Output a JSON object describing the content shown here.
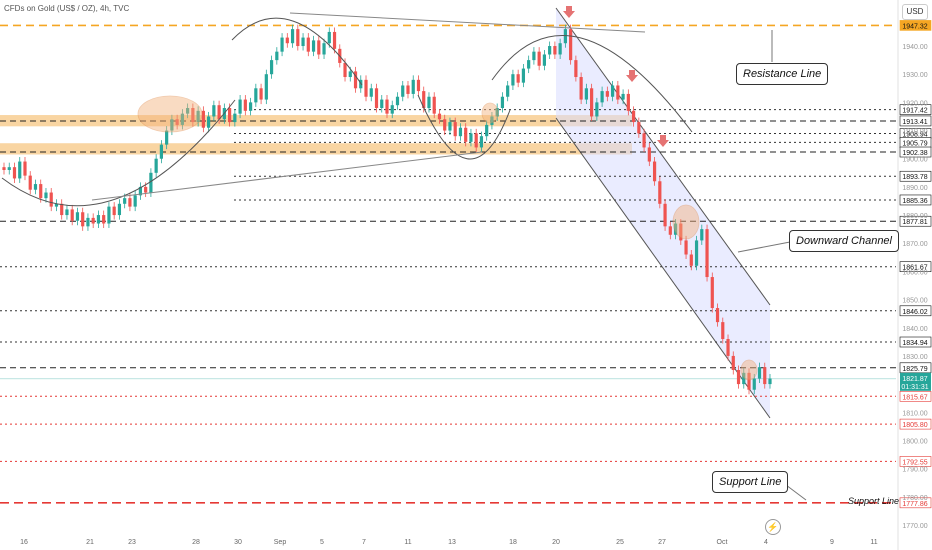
{
  "header": {
    "symbol": "CFDs on Gold (US$ / OZ), 4h, TVC",
    "currency": "USD"
  },
  "annotations": {
    "resistance": "Resistance Line",
    "downward_channel": "Downward Channel",
    "support": "Support Line",
    "support_axis": "Support Line"
  },
  "colors": {
    "up": "#26a69a",
    "down": "#ef5350",
    "orange_zone": "#f7c37a",
    "channel": "#d9dcff",
    "resistance": "#f5a623",
    "support": "#e53935"
  },
  "chart_data": {
    "type": "candlestick",
    "title": "CFDs on Gold (US$ / OZ), 4h, TVC",
    "x_ticks": [
      "16",
      "21",
      "23",
      "28",
      "30",
      "Sep",
      "5",
      "7",
      "11",
      "13",
      "18",
      "20",
      "25",
      "27",
      "Oct",
      "4",
      "9",
      "11"
    ],
    "y_ticks": [
      1770.0,
      1780.0,
      1790.0,
      1800.0,
      1810.0,
      1820.0,
      1830.0,
      1840.0,
      1850.0,
      1860.0,
      1870.0,
      1880.0,
      1890.0,
      1900.0,
      1910.0,
      1920.0,
      1930.0,
      1940.0
    ],
    "ylim": [
      1767.5,
      1953.5
    ],
    "price_levels": [
      {
        "value": 1947.32,
        "label": "1947.32",
        "style": "resistance"
      },
      {
        "value": 1917.42,
        "label": "1917.42",
        "style": "dotted"
      },
      {
        "value": 1913.41,
        "label": "1913.41",
        "style": "dashed"
      },
      {
        "value": 1908.94,
        "label": "1908.94",
        "style": "dotted"
      },
      {
        "value": 1905.79,
        "label": "1905.79",
        "style": "dotted"
      },
      {
        "value": 1902.38,
        "label": "1902.38",
        "style": "dashed"
      },
      {
        "value": 1893.78,
        "label": "1893.78",
        "style": "dotted"
      },
      {
        "value": 1885.36,
        "label": "1885.36",
        "style": "dotted"
      },
      {
        "value": 1877.81,
        "label": "1877.81",
        "style": "dashed"
      },
      {
        "value": 1861.67,
        "label": "1861.67",
        "style": "dotted"
      },
      {
        "value": 1846.02,
        "label": "1846.02",
        "style": "dotted"
      },
      {
        "value": 1834.94,
        "label": "1834.94",
        "style": "dotted"
      },
      {
        "value": 1825.79,
        "label": "1825.79",
        "style": "dashed"
      },
      {
        "value": 1815.67,
        "label": "1815.67",
        "style": "red"
      },
      {
        "value": 1805.8,
        "label": "1805.80",
        "style": "red"
      },
      {
        "value": 1792.55,
        "label": "1792.55",
        "style": "red"
      },
      {
        "value": 1777.86,
        "label": "1777.86",
        "style": "support"
      }
    ],
    "current_price": {
      "value": 1821.87,
      "label": "1821.87",
      "countdown": "01:31:31"
    },
    "closes": [
      1896,
      1897,
      1893,
      1899,
      1894,
      1889,
      1891,
      1886,
      1888,
      1883,
      1884,
      1880,
      1882,
      1878,
      1881,
      1876,
      1879,
      1877,
      1880,
      1877,
      1883,
      1880,
      1884,
      1886,
      1883,
      1887,
      1890,
      1888,
      1895,
      1900,
      1905,
      1910,
      1914,
      1912,
      1916,
      1918,
      1913,
      1917,
      1911,
      1915,
      1919,
      1914,
      1918,
      1913,
      1916,
      1921,
      1917,
      1920,
      1925,
      1921,
      1930,
      1935,
      1938,
      1943,
      1941,
      1946,
      1940,
      1943,
      1938,
      1942,
      1937,
      1941,
      1945,
      1939,
      1934,
      1929,
      1931,
      1925,
      1928,
      1922,
      1925,
      1918,
      1921,
      1916,
      1919,
      1922,
      1926,
      1923,
      1928,
      1924,
      1918,
      1922,
      1916,
      1914,
      1910,
      1913,
      1908,
      1911,
      1906,
      1909,
      1904,
      1908,
      1912,
      1915,
      1918,
      1922,
      1926,
      1930,
      1927,
      1932,
      1935,
      1938,
      1933,
      1937,
      1940,
      1937,
      1941,
      1946,
      1935,
      1929,
      1921,
      1925,
      1915,
      1920,
      1924,
      1922,
      1926,
      1921,
      1923,
      1917,
      1913,
      1909,
      1904,
      1899,
      1892,
      1884,
      1876,
      1873,
      1877,
      1871,
      1866,
      1862,
      1871,
      1875,
      1858,
      1847,
      1842,
      1836,
      1830,
      1825,
      1820,
      1824,
      1818,
      1822,
      1826,
      1820,
      1822
    ],
    "zones": [
      {
        "name": "upper",
        "from": 1911.5,
        "to": 1915.5
      },
      {
        "name": "lower",
        "from": 1901.5,
        "to": 1905.5
      }
    ]
  }
}
